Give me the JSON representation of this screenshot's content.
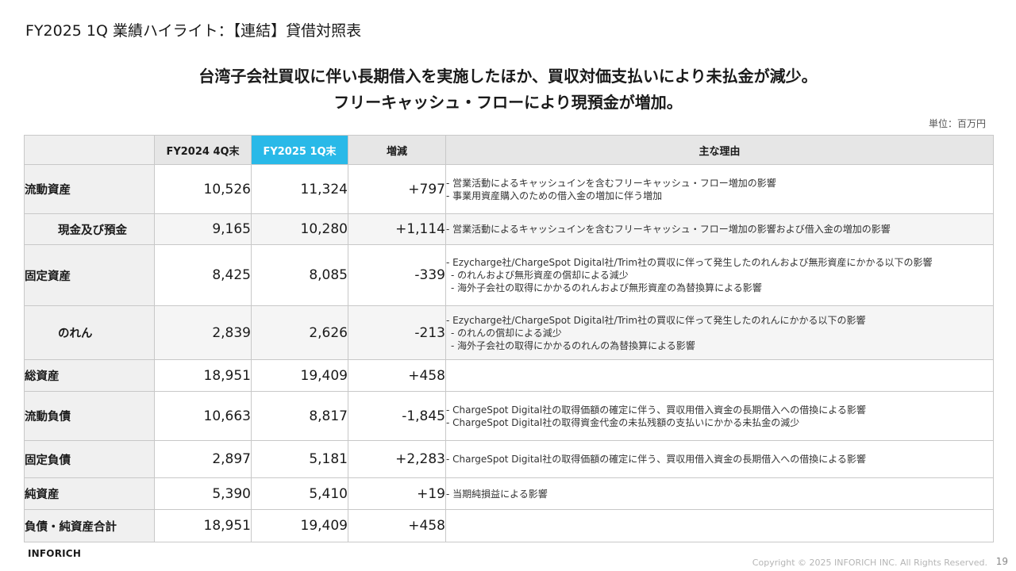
{
  "page": {
    "title": "FY2025 1Q 業績ハイライト：【連結】貸借対照表",
    "headline_line1": "台湾子会社買収に伴い長期借入を実施したほか、買収対価支払いにより未払金が減少。",
    "headline_line2": "フリーキャッシュ・フローにより現預金が増加。",
    "unit": "単位：百万円"
  },
  "table": {
    "headers": {
      "corner": "",
      "col1": "FY2024 4Q末",
      "col2": "FY2025 1Q末",
      "col3": "増減",
      "col4": "主な理由"
    },
    "highlight_color": "#29b9e8",
    "rows": [
      {
        "label": "流動資産",
        "fy24": "10,526",
        "fy25": "11,324",
        "diff": "+797",
        "reasons": [
          "- 営業活動によるキャッシュインを含むフリーキャッシュ・フロー増加の影響",
          "- 事業用資産購入のための借入金の増加に伴う増加"
        ]
      },
      {
        "label": "現金及び預金",
        "fy24": "9,165",
        "fy25": "10,280",
        "diff": "+1,114",
        "reasons": [
          "- 営業活動によるキャッシュインを含むフリーキャッシュ・フロー増加の影響および借入金の増加の影響"
        ]
      },
      {
        "label": "固定資産",
        "fy24": "8,425",
        "fy25": "8,085",
        "diff": "-339",
        "reasons": [
          "- Ezycharge社/ChargeSpot Digital社/Trim社の買収に伴って発生したのれんおよび無形資産にかかる以下の影響",
          "  - のれんおよび無形資産の償却による減少",
          "  - 海外子会社の取得にかかるのれんおよび無形資産の為替換算による影響"
        ]
      },
      {
        "label": "のれん",
        "fy24": "2,839",
        "fy25": "2,626",
        "diff": "-213",
        "reasons": [
          "- Ezycharge社/ChargeSpot Digital社/Trim社の買収に伴って発生したのれんにかかる以下の影響",
          "  - のれんの償却による減少",
          "  - 海外子会社の取得にかかるのれんの為替換算による影響"
        ]
      },
      {
        "label": "総資産",
        "fy24": "18,951",
        "fy25": "19,409",
        "diff": "+458",
        "reasons": []
      },
      {
        "label": "流動負債",
        "fy24": "10,663",
        "fy25": "8,817",
        "diff": "-1,845",
        "reasons": [
          "- ChargeSpot Digital社の取得価額の確定に伴う、買収用借入資金の長期借入への借換による影響",
          "- ChargeSpot Digital社の取得資金代金の未払残額の支払いにかかる未払金の減少"
        ]
      },
      {
        "label": "固定負債",
        "fy24": "2,897",
        "fy25": "5,181",
        "diff": "+2,283",
        "reasons": [
          "- ChargeSpot Digital社の取得価額の確定に伴う、買収用借入資金の長期借入への借換による影響"
        ]
      },
      {
        "label": "純資産",
        "fy24": "5,390",
        "fy25": "5,410",
        "diff": "+19",
        "reasons": [
          "- 当期純損益による影響"
        ]
      },
      {
        "label": "負債・純資産合計",
        "fy24": "18,951",
        "fy25": "19,409",
        "diff": "+458",
        "reasons": []
      }
    ]
  },
  "footer": {
    "logo": "INFORICH",
    "copyright": "Copyright © 2025 INFORICH INC. All Rights Reserved.",
    "page_number": "19"
  }
}
